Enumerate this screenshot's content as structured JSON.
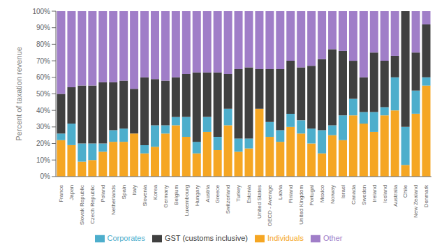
{
  "chart_data": {
    "type": "bar",
    "stacked": true,
    "ylabel": "Percent of taxation revenue",
    "categories": [
      "France",
      "Japan",
      "Slovak Republic",
      "Czech Republic",
      "Poland",
      "Netherlands",
      "Spain",
      "Italy",
      "Slovenia",
      "Korea",
      "Germany",
      "Belgium",
      "Luxembourg",
      "Hungary",
      "Austria",
      "Greece",
      "Switzerland",
      "Turkey",
      "Estonia",
      "United States",
      "OECD - Average",
      "Latvia",
      "Finland",
      "United Kingdom",
      "Portugal",
      "Mexico",
      "Norway",
      "Israel",
      "Canada",
      "Sweden",
      "Ireland",
      "Iceland",
      "Australia",
      "Chile",
      "New Zealand",
      "Denmark"
    ],
    "series": [
      {
        "name": "Individuals",
        "color": "#F5A623",
        "values": [
          22,
          19,
          9,
          10,
          15,
          21,
          21,
          26,
          14,
          18,
          26,
          31,
          24,
          14,
          27,
          16,
          31,
          15,
          17,
          41,
          24,
          21,
          30,
          26,
          20,
          14,
          25,
          22,
          37,
          32,
          27,
          37,
          40,
          7,
          38,
          55
        ]
      },
      {
        "name": "Corporates",
        "color": "#4DAECC",
        "values": [
          4,
          13,
          11,
          10,
          5,
          7,
          8,
          0,
          5,
          13,
          5,
          5,
          12,
          7,
          9,
          8,
          10,
          8,
          6,
          0,
          9,
          7,
          8,
          8,
          9,
          14,
          6,
          15,
          10,
          7,
          12,
          5,
          20,
          23,
          14,
          5
        ]
      },
      {
        "name": "GST (customs inclusive)",
        "color": "#404040",
        "values": [
          24,
          22,
          35,
          35,
          37,
          29,
          29,
          27,
          41,
          28,
          27,
          24,
          26,
          42,
          27,
          39,
          21,
          42,
          43,
          24,
          32,
          37,
          32,
          32,
          38,
          43,
          46,
          39,
          23,
          21,
          36,
          28,
          13,
          70,
          23,
          32
        ]
      },
      {
        "name": "Other",
        "color": "#A07EC8",
        "values": [
          50,
          46,
          45,
          45,
          43,
          43,
          42,
          47,
          40,
          41,
          42,
          40,
          38,
          37,
          37,
          37,
          38,
          35,
          34,
          35,
          35,
          35,
          30,
          34,
          33,
          29,
          23,
          24,
          30,
          40,
          25,
          30,
          27,
          0,
          25,
          8
        ]
      }
    ],
    "ylim": [
      0,
      100
    ],
    "yticks": [
      {
        "value": 0,
        "label": "0%"
      },
      {
        "value": 10,
        "label": "10%"
      },
      {
        "value": 20,
        "label": "20%"
      },
      {
        "value": 30,
        "label": "30%"
      },
      {
        "value": 40,
        "label": "40%"
      },
      {
        "value": 50,
        "label": "50%"
      },
      {
        "value": 60,
        "label": "60%"
      },
      {
        "value": 70,
        "label": "70%"
      },
      {
        "value": 80,
        "label": "80%"
      },
      {
        "value": 90,
        "label": "90%"
      },
      {
        "value": 100,
        "label": "100%"
      }
    ],
    "grid": false,
    "legend": "bottom"
  }
}
